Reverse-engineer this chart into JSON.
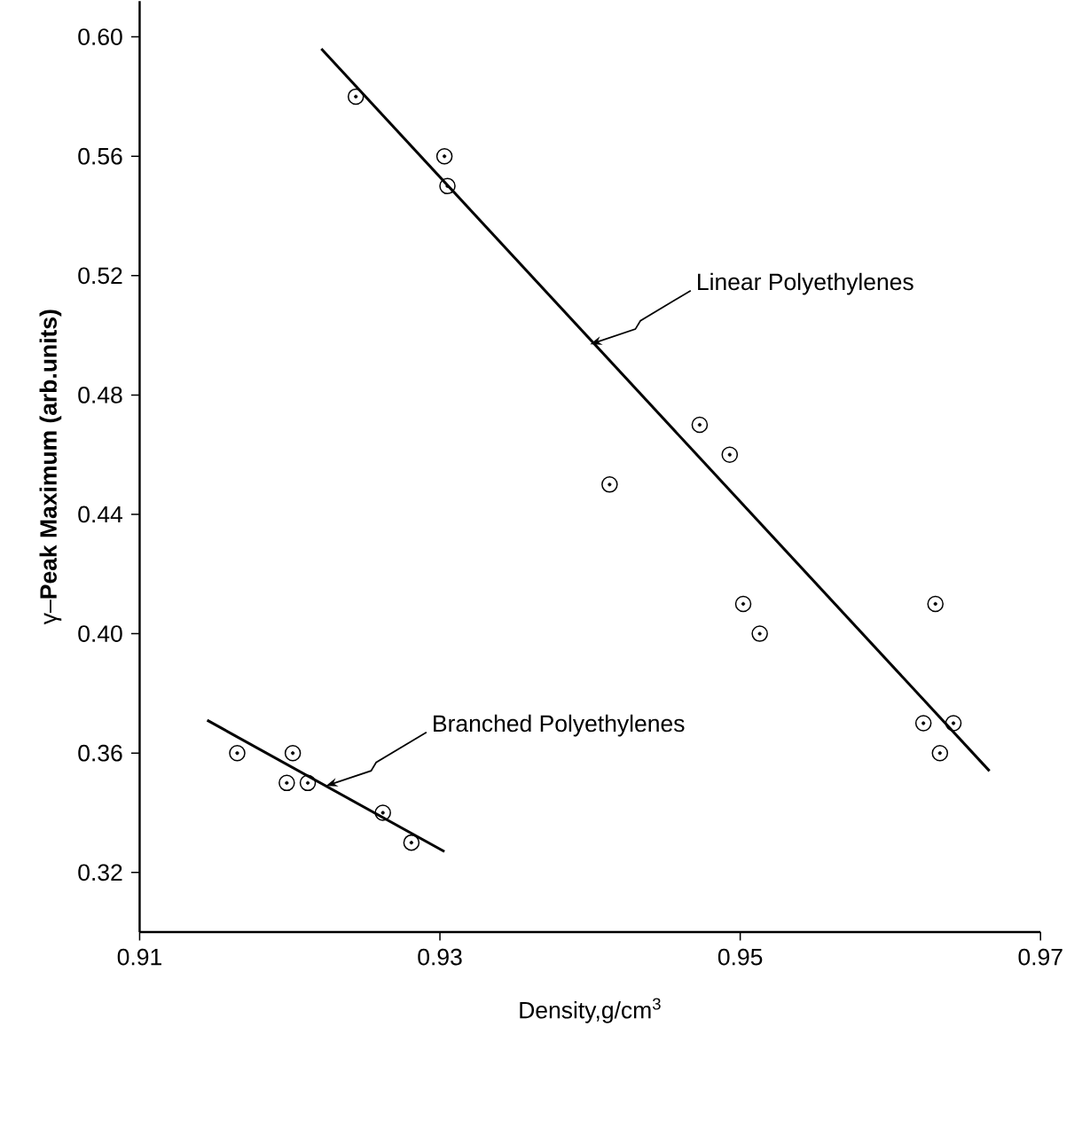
{
  "chart_data": {
    "type": "scatter",
    "xlabel": "Density,g/cm$^{3}$",
    "ylabel": "γ–**Peak Maximum (arb.units)**",
    "xlim": [
      0.91,
      0.97
    ],
    "xticks": [
      0.91,
      0.93,
      0.95,
      0.97
    ],
    "ylim": [
      0.3,
      0.612
    ],
    "yticks": [
      0.32,
      0.36,
      {
        "value": 0.4,
        "label": "0.40"
      },
      0.44,
      0.48,
      0.52,
      0.56,
      {
        "value": 0.6,
        "label": "0.60"
      }
    ],
    "marker": "circle",
    "grid": false,
    "series": [
      {
        "color": "#000000",
        "x": [
          0.9244,
          0.9303,
          0.9305,
          0.9413,
          0.9473,
          0.9493,
          0.9502,
          0.9513,
          0.9622,
          0.963,
          0.9633,
          0.9642
        ],
        "values": [
          0.58,
          0.56,
          0.55,
          0.45,
          0.47,
          0.46,
          0.41,
          0.4,
          0.37,
          0.41,
          0.36,
          0.37
        ]
      },
      {
        "color": "#000000",
        "x": [
          0.9165,
          0.9198,
          0.9202,
          0.9212,
          0.9262,
          0.9281
        ],
        "values": [
          0.36,
          0.35,
          0.36,
          0.35,
          0.34,
          0.33
        ]
      },
      {
        "type": "line",
        "marker": "none",
        "color": "#000000",
        "x": [
          0.9221,
          0.9666
        ],
        "values": [
          0.596,
          0.354
        ]
      },
      {
        "type": "line",
        "marker": "none",
        "color": "#000000",
        "x": [
          0.9145,
          0.9303
        ],
        "values": [
          0.371,
          0.327
        ]
      }
    ],
    "annotations": [
      {
        "text": "Linear Polyethylenes",
        "x": 0.94,
        "y": 0.497
      },
      {
        "text": "Branched Polyethylenes",
        "x": 0.9224,
        "y": 0.349
      }
    ]
  }
}
